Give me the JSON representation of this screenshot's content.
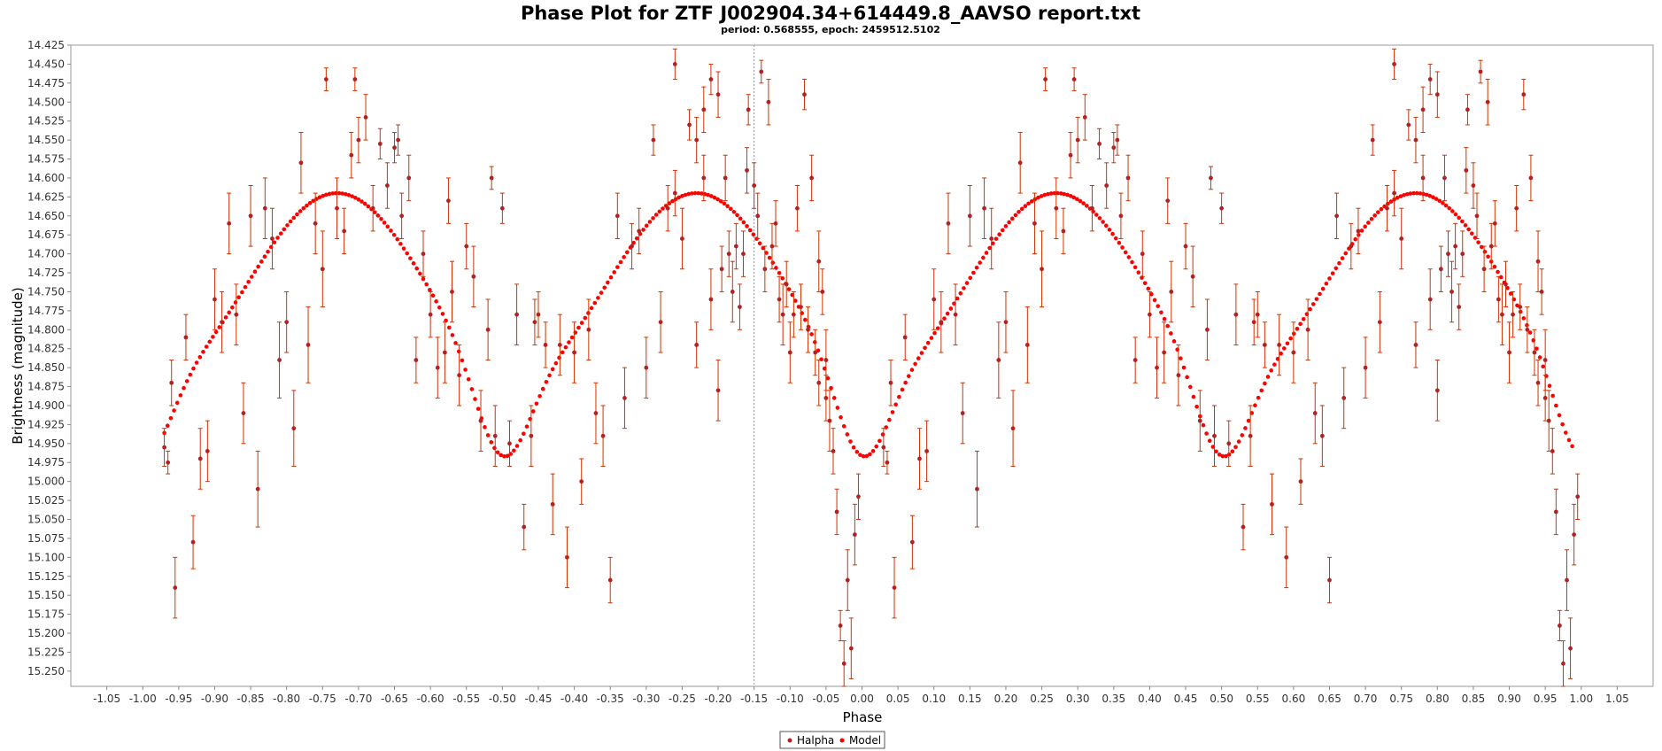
{
  "chart_data": {
    "type": "scatter",
    "title": "Phase Plot for ZTF J002904.34+614449.8_AAVSO report.txt",
    "subtitle": "period: 0.568555, epoch: 2459512.5102",
    "xlabel": "Phase",
    "ylabel": "Brightness (magnitude)",
    "xlim": [
      -1.1,
      1.1
    ],
    "ylim": [
      14.425,
      15.27
    ],
    "y_inverted": true,
    "x_ticks": [
      -1.05,
      -1.0,
      -0.95,
      -0.9,
      -0.85,
      -0.8,
      -0.75,
      -0.7,
      -0.65,
      -0.6,
      -0.55,
      -0.5,
      -0.45,
      -0.4,
      -0.35,
      -0.3,
      -0.25,
      -0.2,
      -0.15,
      -0.1,
      -0.05,
      0.0,
      0.05,
      0.1,
      0.15,
      0.2,
      0.25,
      0.3,
      0.35,
      0.4,
      0.45,
      0.5,
      0.55,
      0.6,
      0.65,
      0.7,
      0.75,
      0.8,
      0.85,
      0.9,
      0.95,
      1.0,
      1.05
    ],
    "x_tick_labels": [
      "-1.05",
      "-1.00",
      "-0.95",
      "-0.90",
      "-0.85",
      "-0.80",
      "-0.75",
      "-0.70",
      "-0.65",
      "-0.60",
      "-0.55",
      "-0.50",
      "-0.45",
      "-0.40",
      "-0.35",
      "-0.30",
      "-0.25",
      "-0.20",
      "-0.15",
      "-0.10",
      "-0.05",
      "0.00",
      "0.05",
      "0.10",
      "0.15",
      "0.20",
      "0.25",
      "0.30",
      "0.35",
      "0.40",
      "0.45",
      "0.50",
      "0.55",
      "0.60",
      "0.65",
      "0.70",
      "0.75",
      "0.80",
      "0.85",
      "0.90",
      "0.95",
      "1.00",
      "1.05"
    ],
    "y_ticks": [
      14.425,
      14.45,
      14.475,
      14.5,
      14.525,
      14.55,
      14.575,
      14.6,
      14.625,
      14.65,
      14.675,
      14.7,
      14.725,
      14.75,
      14.775,
      14.8,
      14.825,
      14.85,
      14.875,
      14.9,
      14.925,
      14.95,
      14.975,
      15.0,
      15.025,
      15.05,
      15.075,
      15.1,
      15.125,
      15.15,
      15.175,
      15.2,
      15.225,
      15.25
    ],
    "y_tick_labels": [
      "14.425",
      "14.450",
      "14.475",
      "14.500",
      "14.525",
      "14.550",
      "14.575",
      "14.600",
      "14.625",
      "14.650",
      "14.675",
      "14.700",
      "14.725",
      "14.750",
      "14.775",
      "14.800",
      "14.825",
      "14.850",
      "14.875",
      "14.900",
      "14.925",
      "14.950",
      "14.975",
      "15.000",
      "15.025",
      "15.050",
      "15.075",
      "15.100",
      "15.125",
      "15.150",
      "15.175",
      "15.200",
      "15.225",
      "15.250"
    ],
    "marker_line": {
      "x": -0.15,
      "color": "#8888ff"
    },
    "legend": {
      "placement": "bottom-center",
      "entries": [
        "Halpha",
        "Model"
      ]
    },
    "grid": false,
    "series": [
      {
        "name": "Halpha",
        "color": "#b22222",
        "errorbar_color": "#cc3300",
        "points": [
          [
            -0.97,
            14.955,
            0.025
          ],
          [
            -0.965,
            14.975,
            0.015
          ],
          [
            -0.96,
            14.87,
            0.03
          ],
          [
            -0.955,
            15.14,
            0.04
          ],
          [
            -0.94,
            14.81,
            0.03
          ],
          [
            -0.93,
            15.08,
            0.035
          ],
          [
            -0.92,
            14.97,
            0.04
          ],
          [
            -0.91,
            14.96,
            0.04
          ],
          [
            -0.9,
            14.76,
            0.04
          ],
          [
            -0.89,
            14.79,
            0.04
          ],
          [
            -0.88,
            14.66,
            0.04
          ],
          [
            -0.87,
            14.78,
            0.04
          ],
          [
            -0.86,
            14.91,
            0.04
          ],
          [
            -0.85,
            14.65,
            0.04
          ],
          [
            -0.84,
            15.01,
            0.05
          ],
          [
            -0.83,
            14.64,
            0.04
          ],
          [
            -0.82,
            14.68,
            0.04
          ],
          [
            -0.81,
            14.84,
            0.05
          ],
          [
            -0.8,
            14.79,
            0.04
          ],
          [
            -0.79,
            14.93,
            0.05
          ],
          [
            -0.78,
            14.58,
            0.04
          ],
          [
            -0.77,
            14.82,
            0.05
          ],
          [
            -0.76,
            14.66,
            0.04
          ],
          [
            -0.75,
            14.72,
            0.05
          ],
          [
            -0.745,
            14.47,
            0.015
          ],
          [
            -0.73,
            14.64,
            0.04
          ],
          [
            -0.72,
            14.67,
            0.03
          ],
          [
            -0.71,
            14.57,
            0.03
          ],
          [
            -0.705,
            14.47,
            0.015
          ],
          [
            -0.7,
            14.55,
            0.03
          ],
          [
            -0.69,
            14.52,
            0.03
          ],
          [
            -0.68,
            14.64,
            0.03
          ],
          [
            -0.67,
            14.555,
            0.02
          ],
          [
            -0.66,
            14.61,
            0.03
          ],
          [
            -0.65,
            14.56,
            0.02
          ],
          [
            -0.645,
            14.55,
            0.02
          ],
          [
            -0.64,
            14.65,
            0.03
          ],
          [
            -0.63,
            14.6,
            0.03
          ],
          [
            -0.62,
            14.84,
            0.03
          ],
          [
            -0.61,
            14.7,
            0.03
          ],
          [
            -0.6,
            14.78,
            0.03
          ],
          [
            -0.59,
            14.85,
            0.04
          ],
          [
            -0.58,
            14.83,
            0.04
          ],
          [
            -0.575,
            14.63,
            0.03
          ],
          [
            -0.57,
            14.75,
            0.04
          ],
          [
            -0.56,
            14.86,
            0.04
          ],
          [
            -0.55,
            14.69,
            0.03
          ],
          [
            -0.54,
            14.73,
            0.04
          ],
          [
            -0.53,
            14.92,
            0.04
          ],
          [
            -0.52,
            14.8,
            0.04
          ],
          [
            -0.515,
            14.6,
            0.015
          ],
          [
            -0.51,
            14.94,
            0.04
          ],
          [
            -0.5,
            14.64,
            0.02
          ],
          [
            -0.49,
            14.95,
            0.03
          ],
          [
            -0.48,
            14.78,
            0.04
          ],
          [
            -0.47,
            15.06,
            0.03
          ],
          [
            -0.46,
            14.94,
            0.04
          ],
          [
            -0.455,
            14.79,
            0.03
          ],
          [
            -0.45,
            14.78,
            0.03
          ],
          [
            -0.44,
            14.82,
            0.03
          ],
          [
            -0.43,
            15.03,
            0.04
          ],
          [
            -0.42,
            14.82,
            0.04
          ],
          [
            -0.41,
            15.1,
            0.04
          ],
          [
            -0.4,
            14.83,
            0.04
          ],
          [
            -0.39,
            15.0,
            0.03
          ],
          [
            -0.38,
            14.8,
            0.04
          ],
          [
            -0.37,
            14.91,
            0.04
          ],
          [
            -0.36,
            14.94,
            0.04
          ],
          [
            -0.35,
            15.13,
            0.03
          ],
          [
            -0.34,
            14.65,
            0.03
          ],
          [
            -0.33,
            14.89,
            0.04
          ],
          [
            -0.32,
            14.69,
            0.03
          ],
          [
            -0.31,
            14.67,
            0.03
          ],
          [
            -0.3,
            14.85,
            0.04
          ],
          [
            -0.29,
            14.55,
            0.02
          ],
          [
            -0.28,
            14.79,
            0.04
          ],
          [
            -0.27,
            14.64,
            0.03
          ],
          [
            -0.26,
            14.62,
            0.03
          ],
          [
            -0.25,
            14.68,
            0.04
          ],
          [
            -0.24,
            14.53,
            0.02
          ],
          [
            -0.23,
            14.82,
            0.03
          ],
          [
            -0.22,
            14.6,
            0.03
          ],
          [
            -0.21,
            14.76,
            0.04
          ],
          [
            -0.2,
            14.88,
            0.04
          ],
          [
            -0.19,
            14.6,
            0.03
          ],
          [
            -0.18,
            14.75,
            0.04
          ],
          [
            -0.17,
            14.77,
            0.03
          ],
          [
            -0.16,
            14.59,
            0.03
          ],
          [
            -0.15,
            14.61,
            0.03
          ],
          [
            -0.14,
            14.46,
            0.015
          ],
          [
            -0.13,
            14.5,
            0.03
          ],
          [
            -0.12,
            14.66,
            0.03
          ],
          [
            -0.11,
            14.78,
            0.04
          ],
          [
            -0.1,
            14.83,
            0.04
          ],
          [
            -0.09,
            14.64,
            0.03
          ],
          [
            -0.08,
            14.49,
            0.02
          ],
          [
            -0.07,
            14.6,
            0.03
          ],
          [
            -0.06,
            14.71,
            0.04
          ],
          [
            -0.055,
            14.75,
            0.03
          ],
          [
            -0.05,
            14.84,
            0.04
          ],
          [
            -0.045,
            14.92,
            0.04
          ],
          [
            -0.04,
            14.96,
            0.03
          ],
          [
            -0.035,
            15.04,
            0.03
          ],
          [
            -0.03,
            15.19,
            0.02
          ],
          [
            -0.025,
            15.24,
            0.03
          ],
          [
            -0.02,
            15.13,
            0.04
          ],
          [
            -0.015,
            15.22,
            0.04
          ],
          [
            -0.01,
            15.07,
            0.04
          ],
          [
            -0.005,
            15.02,
            0.03
          ],
          [
            -0.158,
            14.51,
            0.02
          ],
          [
            -0.2,
            14.49,
            0.03
          ],
          [
            -0.21,
            14.47,
            0.02
          ],
          [
            -0.22,
            14.51,
            0.03
          ],
          [
            -0.23,
            14.55,
            0.03
          ],
          [
            -0.26,
            14.45,
            0.02
          ],
          [
            -0.185,
            14.7,
            0.03
          ],
          [
            -0.195,
            14.72,
            0.03
          ],
          [
            -0.175,
            14.69,
            0.03
          ],
          [
            -0.165,
            14.7,
            0.03
          ],
          [
            -0.145,
            14.65,
            0.03
          ],
          [
            -0.135,
            14.72,
            0.03
          ],
          [
            -0.125,
            14.69,
            0.03
          ],
          [
            -0.115,
            14.76,
            0.03
          ],
          [
            -0.105,
            14.74,
            0.03
          ],
          [
            -0.095,
            14.78,
            0.03
          ],
          [
            -0.085,
            14.77,
            0.03
          ],
          [
            -0.075,
            14.8,
            0.03
          ],
          [
            -0.065,
            14.83,
            0.03
          ],
          [
            -0.06,
            14.87,
            0.03
          ],
          [
            -0.05,
            14.89,
            0.03
          ]
        ]
      },
      {
        "name": "Model",
        "color": "#ff0000",
        "curve": {
          "mean": 14.74,
          "amp1": 0.12,
          "amp2": 0.135,
          "x_start": -0.97,
          "x_end": 0.99,
          "step": 0.0045
        }
      }
    ]
  }
}
